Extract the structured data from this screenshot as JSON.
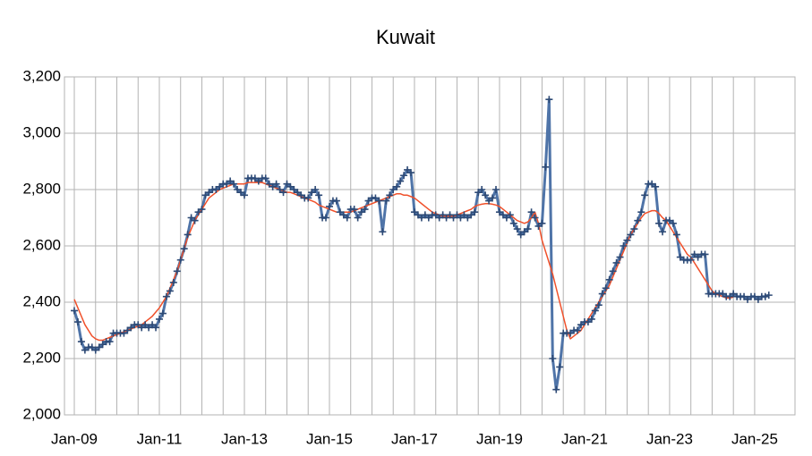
{
  "chart_data": {
    "type": "line",
    "title": "Kuwait",
    "categories": [
      "Jan-09",
      null,
      null,
      null,
      null,
      null,
      null,
      null,
      null,
      null,
      null,
      null,
      null,
      null,
      null,
      null,
      null,
      null,
      null,
      null,
      null,
      null,
      null,
      null,
      "Jan-11",
      null,
      null,
      null,
      null,
      null,
      null,
      null,
      null,
      null,
      null,
      null,
      null,
      null,
      null,
      null,
      null,
      null,
      null,
      null,
      null,
      null,
      null,
      null,
      "Jan-13",
      null,
      null,
      null,
      null,
      null,
      null,
      null,
      null,
      null,
      null,
      null,
      null,
      null,
      null,
      null,
      null,
      null,
      null,
      null,
      null,
      null,
      null,
      null,
      "Jan-15",
      null,
      null,
      null,
      null,
      null,
      null,
      null,
      null,
      null,
      null,
      null,
      null,
      null,
      null,
      null,
      null,
      null,
      null,
      null,
      null,
      null,
      null,
      null,
      "Jan-17",
      null,
      null,
      null,
      null,
      null,
      null,
      null,
      null,
      null,
      null,
      null,
      null,
      null,
      null,
      null,
      null,
      null,
      null,
      null,
      null,
      null,
      null,
      null,
      "Jan-19",
      null,
      null,
      null,
      null,
      null,
      null,
      null,
      null,
      null,
      null,
      null,
      null,
      null,
      null,
      null,
      null,
      null,
      null,
      null,
      null,
      null,
      null,
      null,
      "Jan-21",
      null,
      null,
      null,
      null,
      null,
      null,
      null,
      null,
      null,
      null,
      null,
      null,
      null,
      null,
      null,
      null,
      null,
      null,
      null,
      null,
      null,
      null,
      null,
      "Jan-23",
      null,
      null,
      null,
      null,
      null,
      null,
      null,
      null,
      null,
      null,
      null,
      null,
      null,
      null,
      null,
      null,
      null,
      null,
      null,
      null,
      null,
      null,
      null,
      "Jan-25",
      null,
      null,
      null,
      null
    ],
    "series": [
      {
        "color": "#4f74a8",
        "values": [
          2370,
          2330,
          2260,
          2230,
          2240,
          2240,
          2230,
          2240,
          2250,
          2260,
          2260,
          2290,
          2290,
          2290,
          2290,
          2300,
          2310,
          2320,
          2320,
          2310,
          2320,
          2310,
          2320,
          2310,
          2340,
          2360,
          2420,
          2440,
          2470,
          2510,
          2550,
          2590,
          2640,
          2700,
          2690,
          2720,
          2730,
          2780,
          2790,
          2800,
          2800,
          2810,
          2820,
          2820,
          2830,
          2820,
          2800,
          2790,
          2780,
          2840,
          2840,
          2840,
          2830,
          2840,
          2840,
          2820,
          2810,
          2820,
          2800,
          2790,
          2820,
          2810,
          2800,
          2790,
          2780,
          2770,
          2770,
          2790,
          2800,
          2780,
          2700,
          2700,
          2740,
          2760,
          2760,
          2720,
          2710,
          2700,
          2730,
          2730,
          2700,
          2720,
          2730,
          2760,
          2770,
          2770,
          2760,
          2650,
          2760,
          2780,
          2800,
          2810,
          2830,
          2850,
          2870,
          2860,
          2720,
          2710,
          2700,
          2710,
          2700,
          2710,
          2710,
          2700,
          2710,
          2700,
          2710,
          2700,
          2710,
          2700,
          2710,
          2700,
          2710,
          2720,
          2790,
          2800,
          2780,
          2760,
          2770,
          2800,
          2720,
          2710,
          2700,
          2710,
          2680,
          2660,
          2640,
          2650,
          2660,
          2720,
          2700,
          2670,
          2680,
          2880,
          3120,
          2200,
          2090,
          2170,
          2290,
          2290,
          2290,
          2300,
          2300,
          2320,
          2330,
          2330,
          2340,
          2370,
          2390,
          2430,
          2450,
          2480,
          2510,
          2540,
          2560,
          2600,
          2620,
          2640,
          2660,
          2690,
          2720,
          2780,
          2820,
          2820,
          2810,
          2680,
          2650,
          2690,
          2690,
          2680,
          2640,
          2560,
          2550,
          2550,
          2550,
          2570,
          2560,
          2570,
          2570,
          2430,
          2430,
          2430,
          2430,
          2430,
          2420,
          2420,
          2430,
          2420,
          2420,
          2420,
          2410,
          2420,
          2420,
          2410,
          2420,
          2420,
          2425
        ]
      },
      {
        "color": "#f0502a",
        "values": [
          2410,
          2380,
          2350,
          2320,
          2300,
          2280,
          2270,
          2265,
          2265,
          2270,
          2275,
          2280,
          2285,
          2290,
          2295,
          2300,
          2305,
          2310,
          2315,
          2320,
          2330,
          2340,
          2350,
          2365,
          2380,
          2400,
          2420,
          2450,
          2480,
          2510,
          2550,
          2590,
          2630,
          2660,
          2690,
          2710,
          2730,
          2750,
          2770,
          2780,
          2790,
          2800,
          2805,
          2810,
          2815,
          2820,
          2820,
          2820,
          2820,
          2825,
          2825,
          2825,
          2825,
          2825,
          2820,
          2815,
          2810,
          2805,
          2800,
          2795,
          2790,
          2790,
          2785,
          2780,
          2775,
          2770,
          2765,
          2760,
          2755,
          2745,
          2740,
          2735,
          2730,
          2725,
          2720,
          2720,
          2720,
          2720,
          2720,
          2725,
          2730,
          2735,
          2740,
          2745,
          2750,
          2755,
          2760,
          2765,
          2770,
          2775,
          2780,
          2785,
          2785,
          2780,
          2780,
          2775,
          2770,
          2760,
          2750,
          2740,
          2730,
          2720,
          2715,
          2710,
          2705,
          2705,
          2705,
          2705,
          2710,
          2715,
          2720,
          2725,
          2730,
          2740,
          2745,
          2748,
          2750,
          2750,
          2748,
          2745,
          2740,
          2730,
          2720,
          2710,
          2700,
          2690,
          2685,
          2680,
          2685,
          2700,
          2720,
          2680,
          2620,
          2580,
          2540,
          2500,
          2450,
          2400,
          2350,
          2300,
          2270,
          2280,
          2290,
          2300,
          2320,
          2340,
          2360,
          2380,
          2400,
          2420,
          2440,
          2460,
          2490,
          2520,
          2550,
          2580,
          2610,
          2640,
          2660,
          2680,
          2700,
          2715,
          2720,
          2725,
          2725,
          2715,
          2700,
          2690,
          2670,
          2650,
          2630,
          2610,
          2590,
          2570,
          2560,
          2540,
          2520,
          2500,
          2480,
          2460,
          2440,
          2430,
          2425,
          2420,
          2415,
          2415,
          2418,
          null,
          null,
          null,
          null,
          null,
          null,
          null,
          null,
          null,
          null
        ]
      }
    ],
    "ylim": [
      2000,
      3200
    ],
    "yticks": [
      {
        "value": 2000,
        "label": "2,000"
      },
      {
        "value": 2200,
        "label": "2,200"
      },
      {
        "value": 2400,
        "label": "2,400"
      },
      {
        "value": 2600,
        "label": "2,600"
      },
      {
        "value": 2800,
        "label": "2,800"
      },
      {
        "value": 3000,
        "label": "3,000"
      },
      {
        "value": 3200,
        "label": "3,200"
      }
    ],
    "grid": true
  }
}
